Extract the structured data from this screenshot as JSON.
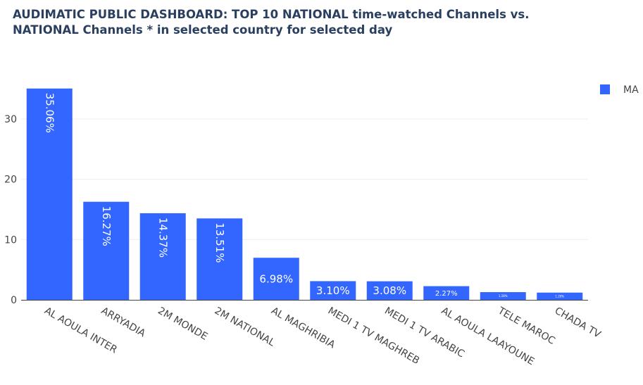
{
  "chart_data": {
    "type": "bar",
    "title": "AUDIMATIC PUBLIC DASHBOARD: TOP 10 NATIONAL time-watched Channels vs. NATIONAL Channels * in selected country for selected day",
    "categories": [
      "AL AOULA INTER",
      "ARRYADIA",
      "2M MONDE",
      "2M NATIONAL",
      "AL MAGHRIBIA",
      "MEDI 1 TV MAGHREB",
      "MEDI 1 TV ARABIC",
      "AL AOULA LAAYOUNE",
      "TELE MAROC",
      "CHADA TV"
    ],
    "series": [
      {
        "name": "MA",
        "values": [
          35.06,
          16.27,
          14.37,
          13.51,
          6.98,
          3.1,
          3.08,
          2.27,
          1.28,
          1.2
        ],
        "labels": [
          "35.06%",
          "16.27%",
          "14.37%",
          "13.51%",
          "6.98%",
          "3.10%",
          "3.08%",
          "2.27%",
          "1.28%",
          "1.20%"
        ],
        "color": "#3366ff"
      }
    ],
    "yticks": [
      0,
      10,
      20,
      30
    ],
    "ylim": [
      0,
      36.9
    ],
    "xlabel": "",
    "ylabel": "",
    "grid": true,
    "legend": "top-right"
  }
}
